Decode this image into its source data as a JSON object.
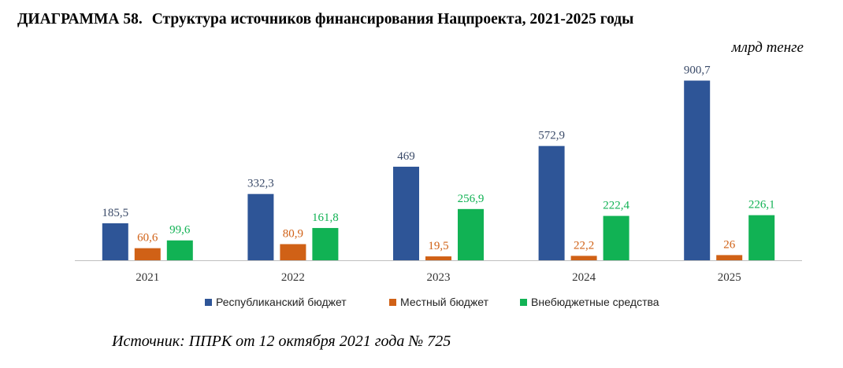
{
  "title_number": "ДИАГРАММА 58.",
  "title_text": "Структура источников финансирования Нацпроекта, 2021-2025 годы",
  "units": "млрд тенге",
  "source": "Источник: ППРК от 12 октября 2021 года № 725",
  "chart_data": {
    "type": "bar",
    "categories": [
      "2021",
      "2022",
      "2023",
      "2024",
      "2025"
    ],
    "series": [
      {
        "name": "Республиканский бюджет",
        "values": [
          185.5,
          332.3,
          469,
          572.9,
          900.7
        ],
        "labels": [
          "185,5",
          "332,3",
          "469",
          "572,9",
          "900,7"
        ],
        "color": "#2E5597",
        "label_color": "#3A4A68"
      },
      {
        "name": "Местный бюджет",
        "values": [
          60.6,
          80.9,
          19.5,
          22.2,
          26
        ],
        "labels": [
          "60,6",
          "80,9",
          "19,5",
          "22,2",
          "26"
        ],
        "color": "#D06116",
        "label_color": "#D06116"
      },
      {
        "name": "Внебюджетные средства",
        "values": [
          99.6,
          161.8,
          256.9,
          222.4,
          226.1
        ],
        "labels": [
          "99,6",
          "161,8",
          "256,9",
          "222,4",
          "226,1"
        ],
        "color": "#11B254",
        "label_color": "#11B254"
      }
    ],
    "ylim": [
      0,
      950
    ],
    "grid": false,
    "legend_position": "bottom"
  }
}
